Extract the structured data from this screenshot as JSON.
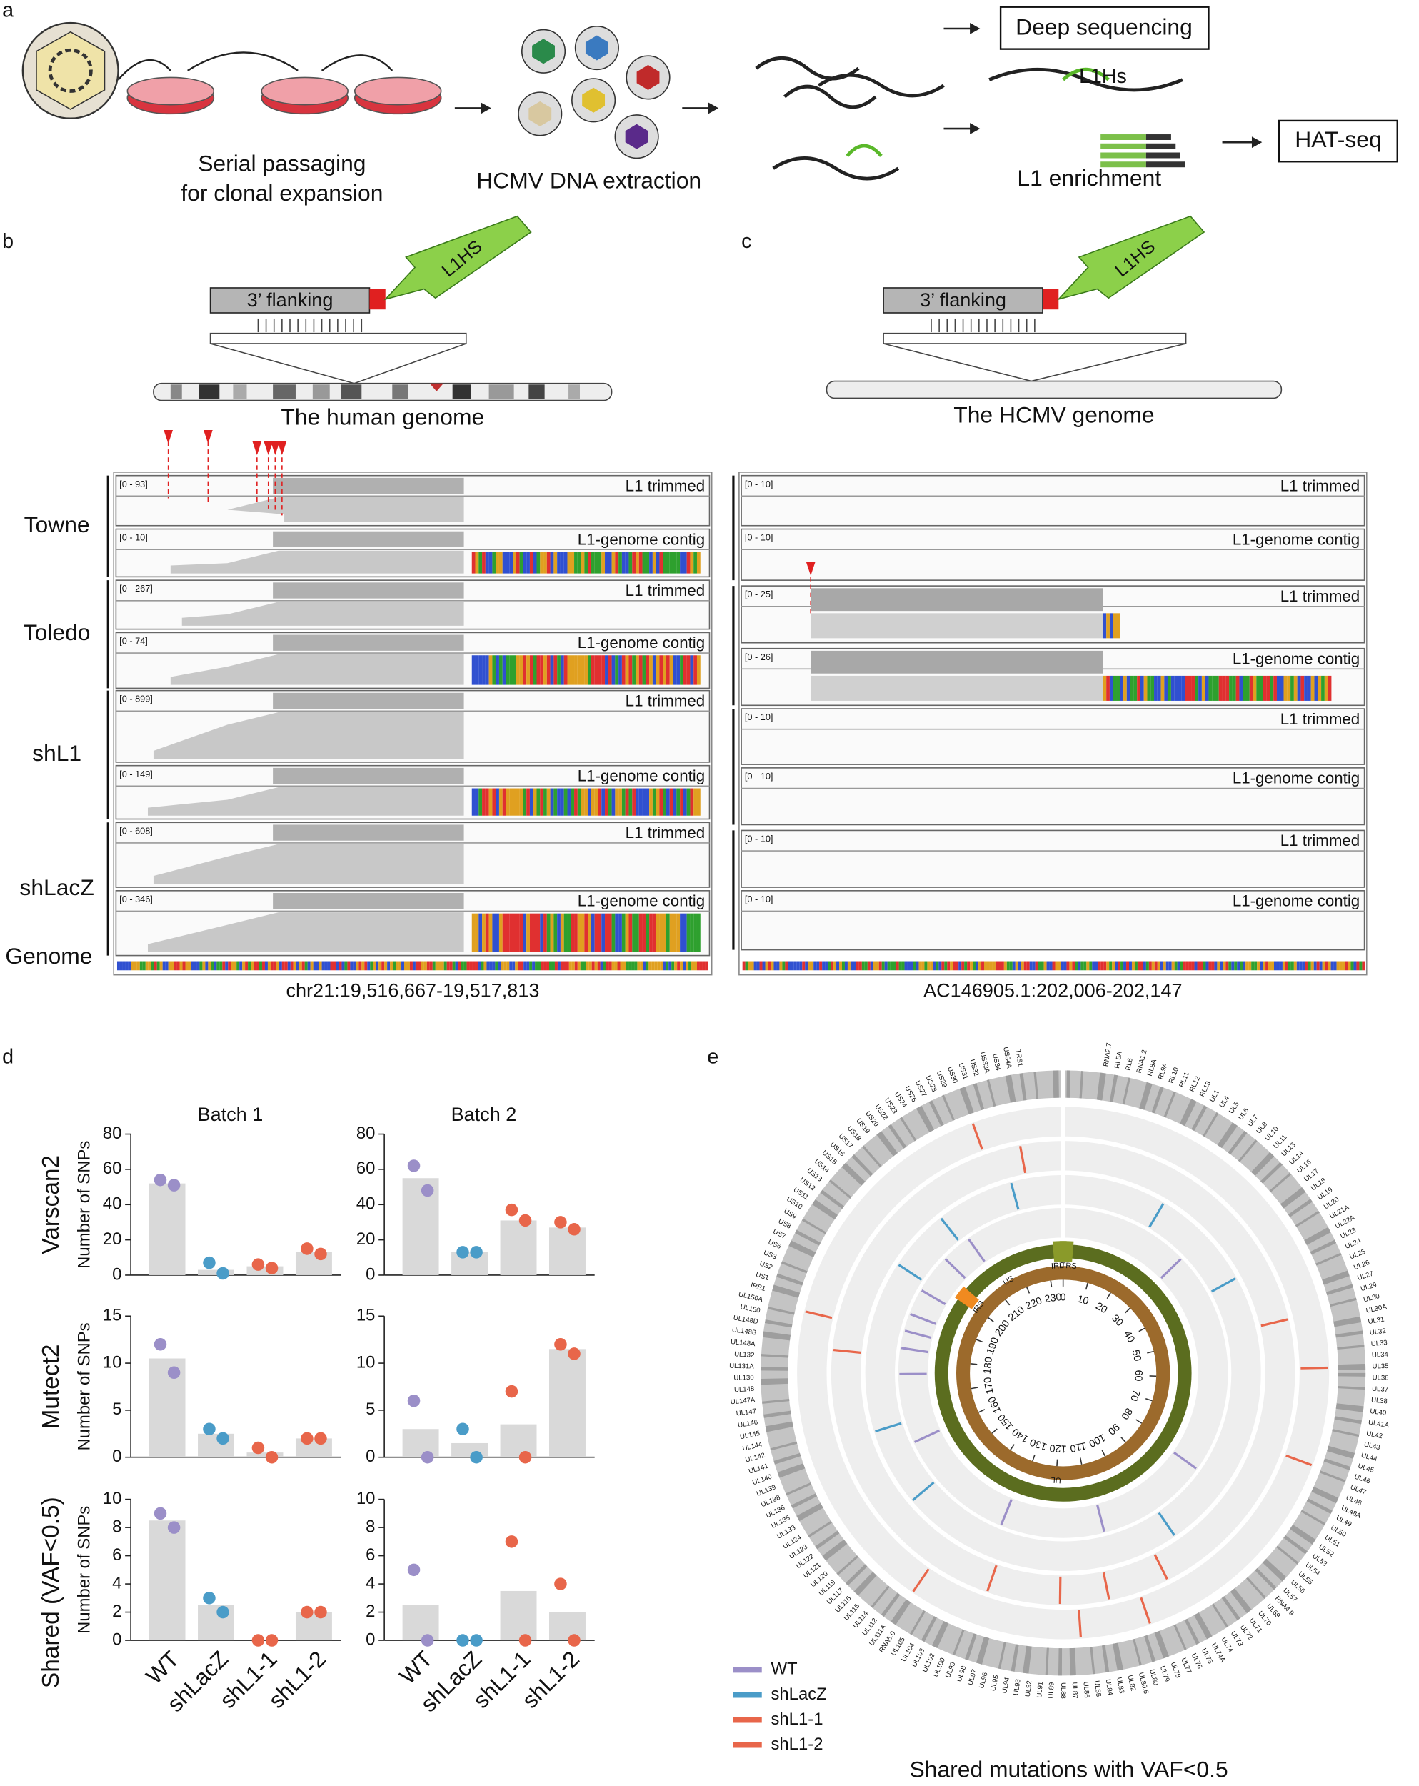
{
  "panel_a": {
    "label": "a",
    "passaging": "Serial passaging",
    "passaging2": "for clonal expansion",
    "extraction": "HCMV DNA extraction",
    "deep_seq": "Deep sequencing",
    "l1hs": "L1Hs",
    "enrichment": "L1 enrichment",
    "hatseq": "HAT-seq"
  },
  "panel_b": {
    "label": "b",
    "flank": "3’ flanking",
    "l1": "L1HS",
    "genome": "The human genome",
    "locus": "chr21:19,516,667-19,517,813",
    "samples": [
      "Towne",
      "Toledo",
      "shL1",
      "shLacZ"
    ],
    "genome_track": "Genome",
    "tracks": [
      {
        "range": "[0 - 93]",
        "name": "L1 trimmed"
      },
      {
        "range": "[0 - 10]",
        "name": "L1-genome contig"
      },
      {
        "range": "[0 - 267]",
        "name": "L1 trimmed"
      },
      {
        "range": "[0 - 74]",
        "name": "L1-genome contig"
      },
      {
        "range": "[0 - 899]",
        "name": "L1 trimmed"
      },
      {
        "range": "[0 - 149]",
        "name": "L1-genome contig"
      },
      {
        "range": "[0 - 608]",
        "name": "L1 trimmed"
      },
      {
        "range": "[0 - 346]",
        "name": "L1-genome contig"
      }
    ]
  },
  "panel_c": {
    "label": "c",
    "flank": "3’ flanking",
    "l1": "L1HS",
    "genome": "The HCMV genome",
    "locus": "AC146905.1:202,006-202,147",
    "tracks": [
      {
        "range": "[0 - 10]",
        "name": "L1 trimmed"
      },
      {
        "range": "[0 - 10]",
        "name": "L1-genome contig"
      },
      {
        "range": "[0 - 25]",
        "name": "L1 trimmed"
      },
      {
        "range": "[0 - 26]",
        "name": "L1-genome contig"
      },
      {
        "range": "[0 - 10]",
        "name": "L1 trimmed"
      },
      {
        "range": "[0 - 10]",
        "name": "L1-genome contig"
      },
      {
        "range": "[0 - 10]",
        "name": "L1 trimmed"
      },
      {
        "range": "[0 - 10]",
        "name": "L1-genome contig"
      }
    ]
  },
  "panel_d": {
    "label": "d",
    "columns": [
      "Batch 1",
      "Batch 2"
    ],
    "rows": [
      "Varscan2",
      "Mutect2",
      "Shared (VAF<0.5)"
    ],
    "ylabel": "Number of SNPs",
    "categories": [
      "WT",
      "shLacZ",
      "shL1-1",
      "shL1-2"
    ],
    "colors": [
      "#9b8fc8",
      "#4a9cc8",
      "#e8664a",
      "#e8664a"
    ]
  },
  "chart_data": [
    {
      "type": "bar",
      "bar_color": "#d9d9d9",
      "ylim": [
        0,
        80
      ],
      "yticks": [
        0,
        20,
        40,
        60,
        80
      ],
      "values": [
        52,
        3,
        5,
        13
      ],
      "points": [
        [
          54,
          51
        ],
        [
          7,
          1
        ],
        [
          6,
          4
        ],
        [
          15,
          12
        ]
      ]
    },
    {
      "type": "bar",
      "bar_color": "#d9d9d9",
      "ylim": [
        0,
        80
      ],
      "yticks": [
        0,
        20,
        40,
        60,
        80
      ],
      "values": [
        55,
        13,
        31,
        27
      ],
      "points": [
        [
          62,
          48
        ],
        [
          13,
          13
        ],
        [
          37,
          31
        ],
        [
          30,
          26
        ]
      ]
    },
    {
      "type": "bar",
      "bar_color": "#d9d9d9",
      "ylim": [
        0,
        15
      ],
      "yticks": [
        0,
        5,
        10,
        15
      ],
      "values": [
        10.5,
        2.5,
        0.5,
        2
      ],
      "points": [
        [
          12,
          9
        ],
        [
          3,
          2
        ],
        [
          1,
          0
        ],
        [
          2,
          2
        ]
      ]
    },
    {
      "type": "bar",
      "bar_color": "#d9d9d9",
      "ylim": [
        0,
        15
      ],
      "yticks": [
        0,
        5,
        10,
        15
      ],
      "values": [
        3,
        1.5,
        3.5,
        11.5
      ],
      "points": [
        [
          6,
          0
        ],
        [
          3,
          0
        ],
        [
          7,
          0
        ],
        [
          12,
          11
        ]
      ]
    },
    {
      "type": "bar",
      "bar_color": "#d9d9d9",
      "ylim": [
        0,
        10
      ],
      "yticks": [
        0,
        2,
        4,
        6,
        8,
        10
      ],
      "values": [
        8.5,
        2.5,
        0,
        2
      ],
      "points": [
        [
          9,
          8
        ],
        [
          3,
          2
        ],
        [
          0,
          0
        ],
        [
          2,
          2
        ]
      ]
    },
    {
      "type": "bar",
      "bar_color": "#d9d9d9",
      "ylim": [
        0,
        10
      ],
      "yticks": [
        0,
        2,
        4,
        6,
        8,
        10
      ],
      "values": [
        2.5,
        0,
        3.5,
        2
      ],
      "points": [
        [
          5,
          0
        ],
        [
          0,
          0
        ],
        [
          7,
          0
        ],
        [
          4,
          0
        ]
      ]
    }
  ],
  "panel_e": {
    "label": "e",
    "title": "Shared mutations with VAF<0.5",
    "genome_length": 235,
    "scale": [
      0,
      10,
      20,
      30,
      40,
      50,
      60,
      70,
      80,
      90,
      100,
      110,
      120,
      130,
      140,
      150,
      160,
      170,
      180,
      190,
      200,
      210,
      220,
      230
    ],
    "regions": [
      "TRS",
      "IRL",
      "UL",
      "IRS",
      "US"
    ],
    "series": [
      {
        "name": "WT",
        "color": "#9b8fc8",
        "positions": [
          212,
          205,
          196,
          190,
          186,
          182,
          176,
          160,
          132,
          108,
          82,
          30
        ]
      },
      {
        "name": "shLacZ",
        "color": "#4a9cc8",
        "positions": [
          225,
          210,
          198,
          40,
          20,
          165,
          150,
          95
        ]
      },
      {
        "name": "shL1-1",
        "color": "#e8664a",
        "positions": [
          228,
          50,
          118,
          110,
          100,
          180,
          130
        ]
      },
      {
        "name": "shL1-2",
        "color": "#e8664a",
        "positions": [
          222,
          58,
          72,
          140,
          115,
          185,
          105
        ]
      }
    ],
    "genes": [
      "RNA2.7",
      "RL5A",
      "RL6",
      "RNA1.2",
      "RL8A",
      "RL9A",
      "RL10",
      "RL11",
      "RL12",
      "RL13",
      "UL1",
      "UL4",
      "UL5",
      "UL6",
      "UL7",
      "UL8",
      "UL10",
      "UL11",
      "UL13",
      "UL14",
      "UL16",
      "UL17",
      "UL18",
      "UL19",
      "UL20",
      "UL21A",
      "UL22A",
      "UL23",
      "UL24",
      "UL25",
      "UL26",
      "UL27",
      "UL29",
      "UL30",
      "UL30A",
      "UL31",
      "UL32",
      "UL33",
      "UL34",
      "UL35",
      "UL36",
      "UL37",
      "UL38",
      "UL40",
      "UL41A",
      "UL42",
      "UL43",
      "UL44",
      "UL45",
      "UL46",
      "UL47",
      "UL48",
      "UL48A",
      "UL49",
      "UL50",
      "UL51",
      "UL52",
      "UL53",
      "UL54",
      "UL55",
      "UL56",
      "UL57",
      "RNA4.9",
      "UL69",
      "UL70",
      "UL71",
      "UL72",
      "UL73",
      "UL74",
      "UL74A",
      "UL75",
      "UL76",
      "UL77",
      "UL78",
      "UL79",
      "UL80",
      "UL80.5",
      "UL82",
      "UL83",
      "UL84",
      "UL85",
      "UL86",
      "UL87",
      "UL88",
      "UL89",
      "UL91",
      "UL92",
      "UL93",
      "UL94",
      "UL95",
      "UL96",
      "UL97",
      "UL98",
      "UL99",
      "UL100",
      "UL102",
      "UL103",
      "UL104",
      "UL105",
      "RNA5.0",
      "UL111A",
      "UL112",
      "UL114",
      "UL115",
      "UL116",
      "UL117",
      "UL119",
      "UL120",
      "UL121",
      "UL122",
      "UL123",
      "UL124",
      "UL133",
      "UL135",
      "UL136",
      "UL138",
      "UL139",
      "UL140",
      "UL141",
      "UL142",
      "UL144",
      "UL145",
      "UL146",
      "UL147",
      "UL147A",
      "UL148",
      "UL130",
      "UL131A",
      "UL132",
      "UL148A",
      "UL148B",
      "UL148D",
      "UL150",
      "UL150A",
      "IRS1",
      "US1",
      "US2",
      "US3",
      "US6",
      "US7",
      "US8",
      "US9",
      "US10",
      "US11",
      "US12",
      "US13",
      "US14",
      "US15",
      "US16",
      "US17",
      "US18",
      "US19",
      "US20",
      "US22",
      "US23",
      "US24",
      "US26",
      "US27",
      "US28",
      "US29",
      "US30",
      "US31",
      "US32",
      "US33A",
      "US34",
      "US34A",
      "TRS1"
    ]
  }
}
